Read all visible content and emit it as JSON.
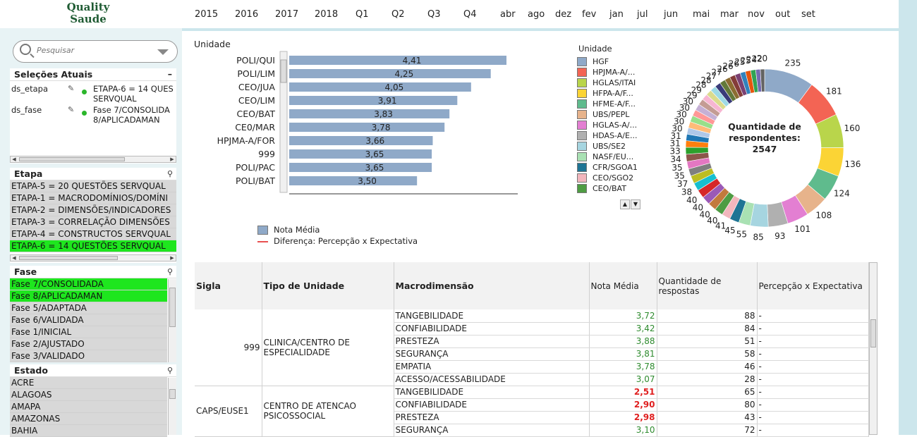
{
  "app": {
    "logo_line1": "Quality",
    "logo_line2": "Saude"
  },
  "timeline": [
    "2015",
    "2016",
    "2017",
    "2018",
    "Q1",
    "Q2",
    "Q3",
    "Q4",
    "abr",
    "ago",
    "dez",
    "fev",
    "jan",
    "jul",
    "jun",
    "mai",
    "mar",
    "nov",
    "out",
    "set"
  ],
  "search": {
    "placeholder": "Pesquisar"
  },
  "current_selections": {
    "title": "Seleções Atuais",
    "rows": [
      {
        "field": "ds_etapa",
        "value": "ETAPA-6 = 14 QUES\nSERVQUAL"
      },
      {
        "field": "ds_fase",
        "value": "Fase 7/CONSOLIDA\n8/APLICADAMAN"
      }
    ]
  },
  "etapa": {
    "title": "Etapa",
    "items": [
      {
        "label": "ETAPA-5 = 20 QUESTÕES SERVQUAL",
        "selected": false
      },
      {
        "label": "ETAPA-1 = MACRODOMÍNIOS/DOMÍNI",
        "selected": false
      },
      {
        "label": "ETAPA-2 = DIMENSÕES/INDICADORES",
        "selected": false
      },
      {
        "label": "ETAPA-3 = CORRELAÇÃO DIMENSÕES",
        "selected": false
      },
      {
        "label": "ETAPA-4 = CONSTRUCTOS SERVQUAL",
        "selected": false
      },
      {
        "label": "ETAPA-6 = 14 QUESTÕES SERVQUAL",
        "selected": true
      }
    ]
  },
  "fase": {
    "title": "Fase",
    "items": [
      {
        "label": "Fase 7/CONSOLIDADA",
        "selected": true
      },
      {
        "label": "Fase 8/APLICADAMAN",
        "selected": true
      },
      {
        "label": "Fase 5/ADAPTADA",
        "selected": false
      },
      {
        "label": "Fase 6/VALIDADA",
        "selected": false
      },
      {
        "label": "Fase 1/INICIAL",
        "selected": false
      },
      {
        "label": "Fase 2/AJUSTADO",
        "selected": false
      },
      {
        "label": "Fase 3/VALIDADO",
        "selected": false
      }
    ]
  },
  "estado": {
    "title": "Estado",
    "items": [
      {
        "label": "ACRE"
      },
      {
        "label": "ALAGOAS"
      },
      {
        "label": "AMAPA"
      },
      {
        "label": "AMAZONAS"
      },
      {
        "label": "BAHIA"
      }
    ]
  },
  "colors": {
    "bar": "#8fa9c8",
    "selected": "#1ee61e",
    "diff_line": "#e85050",
    "good": "#2e8b2e",
    "bad": "#e02020"
  },
  "chart_data": [
    {
      "type": "bar",
      "orientation": "horizontal",
      "title": "Unidade",
      "categories": [
        "POLI/QUI",
        "POLI/LIM",
        "CEO/JUA",
        "CEO/LIM",
        "CEO/BAT",
        "CE0/MAR",
        "HPJMA-A/FOR",
        "999",
        "POLI/PAC",
        "POLI/BAT"
      ],
      "series": [
        {
          "name": "Nota Média",
          "values": [
            4.41,
            4.25,
            4.05,
            3.91,
            3.83,
            3.78,
            3.66,
            3.65,
            3.65,
            3.5
          ]
        }
      ],
      "value_labels": [
        "4,41",
        "4,25",
        "4,05",
        "3,91",
        "3,83",
        "3,78",
        "3,66",
        "3,65",
        "3,65",
        "3,50"
      ],
      "legend": [
        "Nota Média",
        "Diferença: Percepção x Expectativa"
      ]
    },
    {
      "type": "pie",
      "donut": true,
      "center_label": "Quantidade de respondentes:",
      "center_value": "2547",
      "legend_title": "Unidade",
      "legend": [
        {
          "label": "HGF",
          "color": "#8fa9c8"
        },
        {
          "label": "HPJMA-A/...",
          "color": "#f36454"
        },
        {
          "label": "HGLAS/ITAI",
          "color": "#b9d54b"
        },
        {
          "label": "HFPA-A/F...",
          "color": "#fbd435"
        },
        {
          "label": "HFME-A/F...",
          "color": "#5fbb8d"
        },
        {
          "label": "UBS/PEPL",
          "color": "#e7b38b"
        },
        {
          "label": "HGLAS-A/...",
          "color": "#e37fd2"
        },
        {
          "label": "HDAS-A/E...",
          "color": "#b0b0b0"
        },
        {
          "label": "UBS/SE2",
          "color": "#a6d5e0"
        },
        {
          "label": "NASF/EU...",
          "color": "#a9e1b3"
        },
        {
          "label": "CFR/SGOA1",
          "color": "#1e7494"
        },
        {
          "label": "CEO/SGO2",
          "color": "#f2b6bd"
        },
        {
          "label": "CEO/BAT",
          "color": "#4e9c43"
        }
      ],
      "values": [
        235,
        181,
        160,
        136,
        124,
        108,
        101,
        93,
        85,
        55,
        45,
        41,
        40,
        40,
        40,
        40,
        38,
        37,
        35,
        35,
        34,
        33,
        31,
        31,
        30,
        30,
        30,
        30,
        30,
        29,
        29,
        28,
        28,
        27,
        27,
        26,
        26,
        26,
        25,
        25,
        24,
        22,
        20
      ],
      "value_labels": [
        "235",
        "181",
        "160",
        "136",
        "124",
        "108",
        "101",
        "93",
        "85",
        "55",
        "45",
        "41",
        "40",
        "40",
        "40",
        "40",
        "38",
        "37",
        "35",
        "35",
        "34",
        "33",
        "31",
        "31",
        "30",
        "30",
        "30",
        "30",
        "30",
        "29",
        "29",
        "28",
        "28",
        "27",
        "27",
        "26",
        "26",
        "26",
        "25",
        "25",
        "24",
        "22",
        "20"
      ],
      "palette": [
        "#8fa9c8",
        "#f36454",
        "#b9d54b",
        "#fbd435",
        "#5fbb8d",
        "#e7b38b",
        "#e37fd2",
        "#b0b0b0",
        "#a6d5e0",
        "#a9e1b3",
        "#1e7494",
        "#f2b6bd",
        "#4e9c43",
        "#c27a3d",
        "#9b59b6",
        "#d62728",
        "#17becf",
        "#bcbd22",
        "#7f7f7f",
        "#e377c2",
        "#8c564b",
        "#2ca02c",
        "#ff7f0e",
        "#1f77b4",
        "#aec7e8",
        "#ffbb78",
        "#98df8a",
        "#ff9896",
        "#c5b0d5",
        "#c49c94",
        "#f7b6d2",
        "#dbdb8d",
        "#9edae5",
        "#393b79",
        "#637939",
        "#8c6d31",
        "#843c39",
        "#7b4173",
        "#3182bd",
        "#e6550d",
        "#31a354",
        "#756bb1",
        "#636363"
      ]
    }
  ],
  "table": {
    "headers": [
      "Sigla",
      "Tipo de Unidade",
      "Macrodimensão",
      "Nota Média",
      "Quantidade de respostas",
      "Percepção x Expectativa"
    ],
    "groups": [
      {
        "sigla": "999",
        "tipo": "CLINICA/CENTRO DE ESPECIALIDADE",
        "rows": [
          {
            "macro": "TANGEBILIDADE",
            "nota": "3,72",
            "qtd": "88",
            "pe": "-",
            "bad": false
          },
          {
            "macro": "CONFIABILIDADE",
            "nota": "3,42",
            "qtd": "84",
            "pe": "-",
            "bad": false
          },
          {
            "macro": "PRESTEZA",
            "nota": "3,88",
            "qtd": "51",
            "pe": "-",
            "bad": false
          },
          {
            "macro": "SEGURANÇA",
            "nota": "3,81",
            "qtd": "58",
            "pe": "-",
            "bad": false
          },
          {
            "macro": "EMPATIA",
            "nota": "3,78",
            "qtd": "46",
            "pe": "-",
            "bad": false
          },
          {
            "macro": "ACESSO/ACESSABILIDADE",
            "nota": "3,07",
            "qtd": "28",
            "pe": "-",
            "bad": false
          }
        ]
      },
      {
        "sigla": "CAPS/EUSE1",
        "tipo": "CENTRO DE ATENCAO PSICOSSOCIAL",
        "rows": [
          {
            "macro": "TANGEBILIDADE",
            "nota": "2,51",
            "qtd": "65",
            "pe": "-",
            "bad": true
          },
          {
            "macro": "CONFIABILIDADE",
            "nota": "2,90",
            "qtd": "80",
            "pe": "-",
            "bad": true
          },
          {
            "macro": "PRESTEZA",
            "nota": "2,98",
            "qtd": "43",
            "pe": "-",
            "bad": true
          },
          {
            "macro": "SEGURANÇA",
            "nota": "3,10",
            "qtd": "72",
            "pe": "-",
            "bad": false
          }
        ]
      }
    ]
  }
}
